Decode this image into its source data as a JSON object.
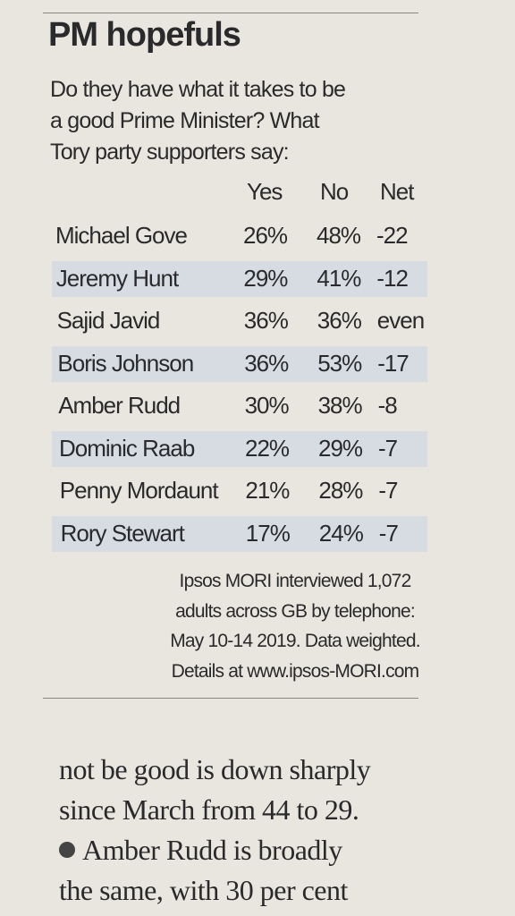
{
  "header": {
    "title": "PM hopefuls",
    "subtitle": [
      "Do they have what it takes to be",
      "a good Prime Minister? What",
      "Tory party supporters say:"
    ]
  },
  "table": {
    "columns": [
      "Yes",
      "No",
      "Net"
    ],
    "rows": [
      [
        "Michael Gove",
        "26%",
        "48%",
        "-22"
      ],
      [
        "Jeremy Hunt",
        "29%",
        "41%",
        "-12"
      ],
      [
        "Sajid Javid",
        "36%",
        "36%",
        "even"
      ],
      [
        "Boris Johnson",
        "36%",
        "53%",
        "-17"
      ],
      [
        "Amber Rudd",
        "30%",
        "38%",
        "-8"
      ],
      [
        "Dominic Raab",
        "22%",
        "29%",
        "-7"
      ],
      [
        "Penny Mordaunt",
        "21%",
        "28%",
        "-7"
      ],
      [
        "Rory Stewart",
        "17%",
        "24%",
        "-7"
      ]
    ]
  },
  "footnote": [
    "Ipsos MORI interviewed 1,072",
    "adults across GB by telephone:",
    "May 10-14 2019. Data weighted.",
    "Details at www.ipsos-MORI.com"
  ],
  "article": [
    "not be good is down sharply",
    "since March from 44 to 29.",
    "Amber Rudd is broadly",
    "the same, with 30 per cent"
  ]
}
